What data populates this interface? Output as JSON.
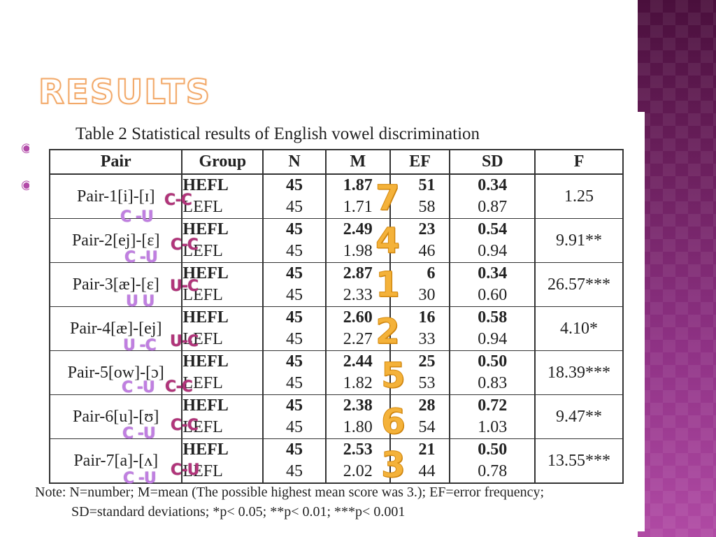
{
  "slide": {
    "title": "RESULTS",
    "bullet_glyph": "◉",
    "accent_color": "#b24aa8",
    "title_outline_color": "#f2a868",
    "rank_color": "#f4b23a"
  },
  "table": {
    "caption": "Table 2 Statistical results of English vowel discrimination",
    "headers": [
      "Pair",
      "Group",
      "N",
      "M",
      "EF",
      "SD",
      "F"
    ],
    "rows": [
      {
        "pair": "Pair-1[i]-[ɪ]",
        "groups": [
          "HEFL",
          "LEFL"
        ],
        "n": [
          "45",
          "45"
        ],
        "m": [
          "1.87",
          "1.71"
        ],
        "ef": [
          "51",
          "58"
        ],
        "sd": [
          "0.34",
          "0.87"
        ],
        "f": "1.25"
      },
      {
        "pair": "Pair-2[ej]-[ɛ]",
        "groups": [
          "HEFL",
          "LEFL"
        ],
        "n": [
          "45",
          "45"
        ],
        "m": [
          "2.49",
          "1.98"
        ],
        "ef": [
          "23",
          "46"
        ],
        "sd": [
          "0.54",
          "0.94"
        ],
        "f": "9.91**"
      },
      {
        "pair": "Pair-3[æ]-[ɛ]",
        "groups": [
          "HEFL",
          "LEFL"
        ],
        "n": [
          "45",
          "45"
        ],
        "m": [
          "2.87",
          "2.33"
        ],
        "ef": [
          "6",
          "30"
        ],
        "sd": [
          "0.34",
          "0.60"
        ],
        "f": "26.57***"
      },
      {
        "pair": "Pair-4[æ]-[ej]",
        "groups": [
          "HEFL",
          "LEFL"
        ],
        "n": [
          "45",
          "45"
        ],
        "m": [
          "2.60",
          "2.27"
        ],
        "ef": [
          "16",
          "33"
        ],
        "sd": [
          "0.58",
          "0.94"
        ],
        "f": "4.10*"
      },
      {
        "pair": "Pair-5[ow]-[ɔ]",
        "groups": [
          "HEFL",
          "LEFL"
        ],
        "n": [
          "45",
          "45"
        ],
        "m": [
          "2.44",
          "1.82"
        ],
        "ef": [
          "25",
          "53"
        ],
        "sd": [
          "0.50",
          "0.83"
        ],
        "f": "18.39***"
      },
      {
        "pair": "Pair-6[u]-[ʊ]",
        "groups": [
          "HEFL",
          "LEFL"
        ],
        "n": [
          "45",
          "45"
        ],
        "m": [
          "2.38",
          "1.80"
        ],
        "ef": [
          "28",
          "54"
        ],
        "sd": [
          "0.72",
          "1.03"
        ],
        "f": "9.47**"
      },
      {
        "pair": "Pair-7[a]-[ʌ]",
        "groups": [
          "HEFL",
          "LEFL"
        ],
        "n": [
          "45",
          "45"
        ],
        "m": [
          "2.53",
          "2.02"
        ],
        "ef": [
          "21",
          "44"
        ],
        "sd": [
          "0.50",
          "0.78"
        ],
        "f": "13.55***"
      }
    ],
    "note_line1": "Note: N=number; M=mean (The possible highest mean score was 3.); EF=error frequency;",
    "note_line2": "SD=standard deviations; *p< 0.05; **p< 0.01; ***p< 0.001"
  },
  "annotations": {
    "pair1_right": "C-C",
    "pair1_below": "C -U",
    "pair2_right": "C-C",
    "pair2_below": "C -U",
    "pair3_right": "U-C",
    "pair3_below": "U  U",
    "pair4_below_left": "U -C",
    "pair4_below_right": "U-C",
    "pair5_below_left": "C -U",
    "pair5_below_right": "C-C",
    "pair6_right": "C-C",
    "pair6_below": "C -U",
    "pair7_right": "C-U",
    "pair7_below": "C -U"
  },
  "ranks": [
    "7",
    "4",
    "1",
    "2",
    "5",
    "6",
    "3"
  ]
}
